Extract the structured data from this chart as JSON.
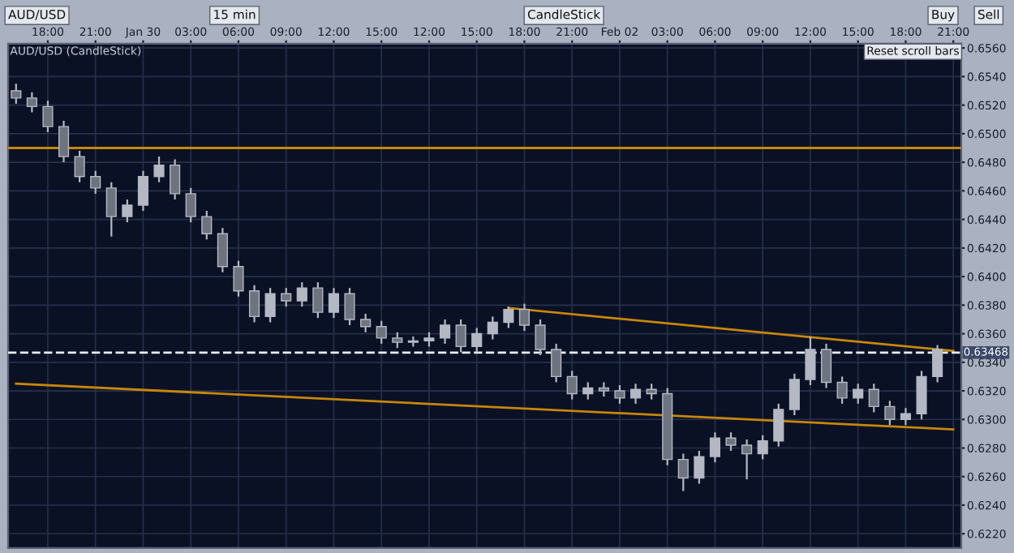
{
  "chart_data": {
    "type": "candlestick",
    "title": "AUD/USD (CandleStick)",
    "annotations": [
      "AUD/USD",
      "15 min",
      "CandleStick",
      "Buy",
      "Sell",
      "Reset scroll bars"
    ],
    "color": "#b4b8c2",
    "categories": [
      null,
      null,
      "18:00",
      null,
      null,
      "21:00",
      null,
      null,
      "Jan 30",
      null,
      null,
      "03:00",
      null,
      null,
      "06:00",
      null,
      null,
      "09:00",
      null,
      null,
      "12:00",
      null,
      null,
      "15:00",
      null,
      null,
      "12:00",
      null,
      null,
      "15:00",
      null,
      null,
      "18:00",
      null,
      null,
      "21:00",
      null,
      null,
      "Feb 02",
      null,
      null,
      "03:00",
      null,
      null,
      "06:00",
      null,
      null,
      "09:00",
      null,
      null,
      "12:00",
      null,
      null,
      "15:00",
      null,
      null,
      "18:00",
      null,
      null,
      "21:00"
    ],
    "ohlc": [
      [
        0.653,
        0.6535,
        0.6521,
        0.6525
      ],
      [
        0.6525,
        0.6529,
        0.6515,
        0.6519
      ],
      [
        0.6519,
        0.6523,
        0.6501,
        0.6505
      ],
      [
        0.6505,
        0.6509,
        0.648,
        0.6484
      ],
      [
        0.6484,
        0.6488,
        0.6466,
        0.647
      ],
      [
        0.647,
        0.6474,
        0.6458,
        0.6462
      ],
      [
        0.6462,
        0.6466,
        0.6428,
        0.6442
      ],
      [
        0.6442,
        0.6454,
        0.6438,
        0.645
      ],
      [
        0.645,
        0.6474,
        0.6446,
        0.647
      ],
      [
        0.647,
        0.6484,
        0.6466,
        0.6478
      ],
      [
        0.6478,
        0.6482,
        0.6454,
        0.6458
      ],
      [
        0.6458,
        0.6462,
        0.6438,
        0.6442
      ],
      [
        0.6442,
        0.6446,
        0.6426,
        0.643
      ],
      [
        0.643,
        0.6434,
        0.6403,
        0.6407
      ],
      [
        0.6407,
        0.6411,
        0.6386,
        0.639
      ],
      [
        0.639,
        0.6394,
        0.6368,
        0.6372
      ],
      [
        0.6372,
        0.6392,
        0.6368,
        0.6388
      ],
      [
        0.6388,
        0.6392,
        0.6379,
        0.6383
      ],
      [
        0.6383,
        0.6396,
        0.6379,
        0.6392
      ],
      [
        0.6392,
        0.6396,
        0.6371,
        0.6375
      ],
      [
        0.6375,
        0.6392,
        0.6371,
        0.6388
      ],
      [
        0.6388,
        0.6392,
        0.6366,
        0.637
      ],
      [
        0.637,
        0.6374,
        0.6361,
        0.6365
      ],
      [
        0.6365,
        0.6369,
        0.6353,
        0.6357
      ],
      [
        0.6357,
        0.6361,
        0.635,
        0.6354
      ],
      [
        0.6354,
        0.6358,
        0.6351,
        0.6355
      ],
      [
        0.6355,
        0.6361,
        0.6351,
        0.6357
      ],
      [
        0.6357,
        0.637,
        0.6353,
        0.6366
      ],
      [
        0.6366,
        0.637,
        0.6347,
        0.6351
      ],
      [
        0.6351,
        0.6364,
        0.6347,
        0.636
      ],
      [
        0.636,
        0.6372,
        0.6356,
        0.6368
      ],
      [
        0.6368,
        0.6379,
        0.6364,
        0.6377
      ],
      [
        0.6377,
        0.6381,
        0.6362,
        0.6366
      ],
      [
        0.6366,
        0.637,
        0.6345,
        0.6349
      ],
      [
        0.6349,
        0.6353,
        0.6326,
        0.633
      ],
      [
        0.633,
        0.6334,
        0.6314,
        0.6318
      ],
      [
        0.6318,
        0.6326,
        0.6314,
        0.6322
      ],
      [
        0.6322,
        0.6326,
        0.6316,
        0.632
      ],
      [
        0.632,
        0.6324,
        0.6311,
        0.6315
      ],
      [
        0.6315,
        0.6325,
        0.6311,
        0.6321
      ],
      [
        0.6321,
        0.6325,
        0.6314,
        0.6318
      ],
      [
        0.6318,
        0.6322,
        0.6268,
        0.6272
      ],
      [
        0.6272,
        0.6276,
        0.625,
        0.6259
      ],
      [
        0.6259,
        0.6278,
        0.6255,
        0.6274
      ],
      [
        0.6274,
        0.6291,
        0.627,
        0.6287
      ],
      [
        0.6287,
        0.6291,
        0.6278,
        0.6282
      ],
      [
        0.6282,
        0.6286,
        0.6258,
        0.6276
      ],
      [
        0.6276,
        0.6289,
        0.6272,
        0.6285
      ],
      [
        0.6285,
        0.6311,
        0.6281,
        0.6307
      ],
      [
        0.6307,
        0.6332,
        0.6303,
        0.6328
      ],
      [
        0.6328,
        0.6358,
        0.6324,
        0.6349
      ],
      [
        0.6349,
        0.6353,
        0.6322,
        0.6326
      ],
      [
        0.6326,
        0.633,
        0.6311,
        0.6315
      ],
      [
        0.6315,
        0.6325,
        0.6311,
        0.6321
      ],
      [
        0.6321,
        0.6325,
        0.6305,
        0.6309
      ],
      [
        0.6309,
        0.6313,
        0.6296,
        0.63
      ],
      [
        0.63,
        0.6308,
        0.6296,
        0.6304
      ],
      [
        0.6304,
        0.6334,
        0.63,
        0.633
      ],
      [
        0.633,
        0.6352,
        0.6326,
        0.6349
      ],
      null
    ],
    "series": [
      {
        "type": "line",
        "color": "#c8860a",
        "values": [
          null,
          null,
          null,
          null,
          null,
          null,
          null,
          null,
          null,
          null,
          null,
          null,
          null,
          null,
          null,
          null,
          null,
          null,
          null,
          null,
          null,
          null,
          null,
          null,
          null,
          null,
          null,
          null,
          null,
          null,
          null,
          0.6378,
          null,
          null,
          null,
          null,
          null,
          null,
          null,
          null,
          null,
          null,
          null,
          null,
          null,
          null,
          null,
          null,
          null,
          null,
          null,
          null,
          null,
          null,
          null,
          null,
          null,
          null,
          null,
          0.6348
        ]
      },
      {
        "type": "line",
        "color": "#c8860a",
        "values": [
          0.6325,
          null,
          null,
          null,
          null,
          null,
          null,
          null,
          null,
          null,
          null,
          null,
          null,
          null,
          null,
          null,
          null,
          null,
          null,
          null,
          null,
          null,
          null,
          null,
          null,
          null,
          null,
          null,
          null,
          null,
          null,
          null,
          null,
          null,
          null,
          null,
          null,
          null,
          null,
          null,
          null,
          null,
          null,
          null,
          null,
          null,
          null,
          null,
          null,
          null,
          null,
          null,
          null,
          null,
          null,
          null,
          null,
          null,
          null,
          0.6293
        ]
      }
    ],
    "ref_lines": [
      {
        "axis": "y",
        "value": 0.649,
        "label": null,
        "color": "#c8860a",
        "line_style": "solid"
      },
      {
        "axis": "y",
        "value": 0.63468,
        "label": "0.63468",
        "color": "#e8ecf4",
        "line_style": "dashed"
      }
    ],
    "ylim": [
      0.621,
      0.6563
    ],
    "yticks": [
      {
        "value": 0.622,
        "label": "0.6220"
      },
      {
        "value": 0.624,
        "label": "0.6240"
      },
      {
        "value": 0.626,
        "label": "0.6260"
      },
      {
        "value": 0.628,
        "label": "0.6280"
      },
      {
        "value": 0.63,
        "label": "0.6300"
      },
      {
        "value": 0.632,
        "label": "0.6320"
      },
      {
        "value": 0.634,
        "label": "0.6340"
      },
      {
        "value": 0.636,
        "label": "0.6360"
      },
      {
        "value": 0.638,
        "label": "0.6380"
      },
      {
        "value": 0.64,
        "label": "0.6400"
      },
      {
        "value": 0.642,
        "label": "0.6420"
      },
      {
        "value": 0.644,
        "label": "0.6440"
      },
      {
        "value": 0.646,
        "label": "0.6460"
      },
      {
        "value": 0.648,
        "label": "0.6480"
      },
      {
        "value": 0.65,
        "label": "0.6500"
      },
      {
        "value": 0.652,
        "label": "0.6520"
      },
      {
        "value": 0.654,
        "label": "0.6540"
      },
      {
        "value": 0.656,
        "label": "0.6560"
      }
    ],
    "grid": true
  }
}
